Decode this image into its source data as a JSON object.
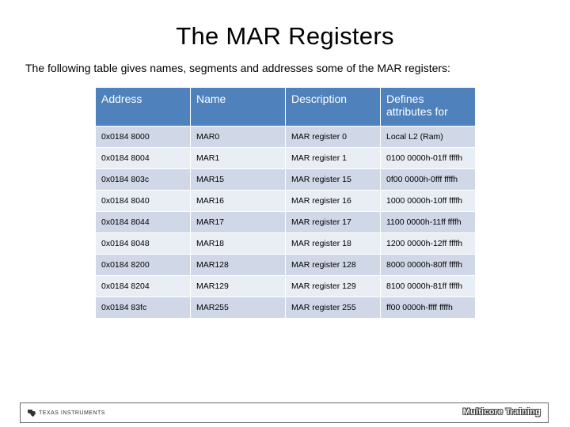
{
  "slide": {
    "title": "The MAR Registers",
    "subtitle": "The following table gives names, segments and addresses some of the MAR registers:"
  },
  "table": {
    "headers": [
      "Address",
      "Name",
      "Description",
      "Defines attributes for"
    ],
    "rows": [
      [
        "0x0184 8000",
        "MAR0",
        "MAR register 0",
        "Local L2 (Ram)"
      ],
      [
        "0x0184 8004",
        "MAR1",
        "MAR register 1",
        "0100 0000h-01ff ffffh"
      ],
      [
        "0x0184 803c",
        "MAR15",
        "MAR register 15",
        "0f00 0000h-0fff ffffh"
      ],
      [
        "0x0184 8040",
        "MAR16",
        "MAR register 16",
        "1000 0000h-10ff ffffh"
      ],
      [
        "0x0184 8044",
        "MAR17",
        "MAR register 17",
        "1100 0000h-11ff ffffh"
      ],
      [
        "0x0184 8048",
        "MAR18",
        "MAR register 18",
        "1200 0000h-12ff ffffh"
      ],
      [
        "0x0184 8200",
        "MAR128",
        "MAR register 128",
        "8000 0000h-80ff ffffh"
      ],
      [
        "0x0184 8204",
        "MAR129",
        "MAR register 129",
        "8100 0000h-81ff ffffh"
      ],
      [
        "0x0184 83fc",
        "MAR255",
        "MAR register 255",
        "ff00 0000h-ffff ffffh"
      ]
    ]
  },
  "footer": {
    "logo_text": "TEXAS INSTRUMENTS",
    "logo_icon": "texas-instruments-logo-icon",
    "brand_text": "Multicore Training"
  },
  "colors": {
    "header_fill": "#4f81bd",
    "row_odd": "#d0d8e8",
    "row_even": "#e9edf4"
  }
}
